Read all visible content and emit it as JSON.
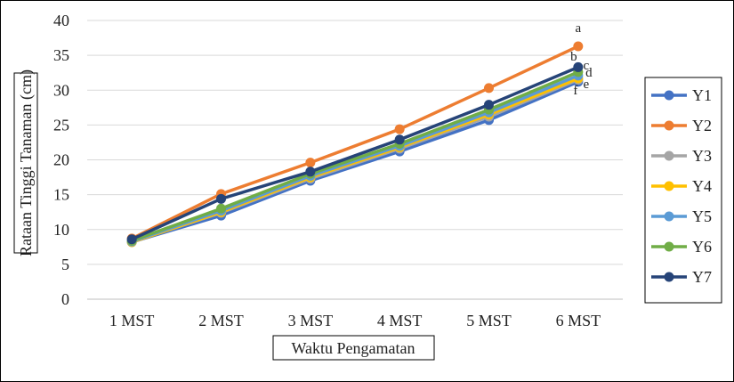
{
  "chart_data": {
    "type": "line",
    "xlabel": "Waktu Pengamatan",
    "ylabel": "Rataan Tinggi Tanaman (cm)",
    "categories": [
      "1 MST",
      "2 MST",
      "3 MST",
      "4 MST",
      "5 MST",
      "6 MST"
    ],
    "ylim": [
      0,
      40
    ],
    "yticks": [
      0,
      5,
      10,
      15,
      20,
      25,
      30,
      35,
      40
    ],
    "grid": true,
    "legend_position": "right",
    "series": [
      {
        "name": "Y1",
        "color": "#4472C4",
        "values": [
          8.2,
          12.0,
          17.0,
          21.2,
          25.7,
          31.2
        ]
      },
      {
        "name": "Y2",
        "color": "#ED7D31",
        "values": [
          8.7,
          15.1,
          19.6,
          24.4,
          30.3,
          36.3
        ]
      },
      {
        "name": "Y3",
        "color": "#A5A5A5",
        "values": [
          8.2,
          12.4,
          17.3,
          21.6,
          26.2,
          31.5
        ]
      },
      {
        "name": "Y4",
        "color": "#FFC000",
        "values": [
          8.2,
          12.5,
          17.5,
          21.8,
          26.5,
          31.7
        ]
      },
      {
        "name": "Y5",
        "color": "#5B9BD5",
        "values": [
          8.3,
          12.7,
          17.7,
          22.0,
          26.8,
          32.1
        ]
      },
      {
        "name": "Y6",
        "color": "#70AD47",
        "values": [
          8.4,
          13.0,
          18.0,
          22.3,
          27.2,
          32.6
        ]
      },
      {
        "name": "Y7",
        "color": "#264478",
        "values": [
          8.6,
          14.4,
          18.3,
          22.9,
          27.9,
          33.3
        ]
      }
    ],
    "annotations": [
      "a",
      "b",
      "c",
      "d",
      "e",
      "f"
    ]
  }
}
